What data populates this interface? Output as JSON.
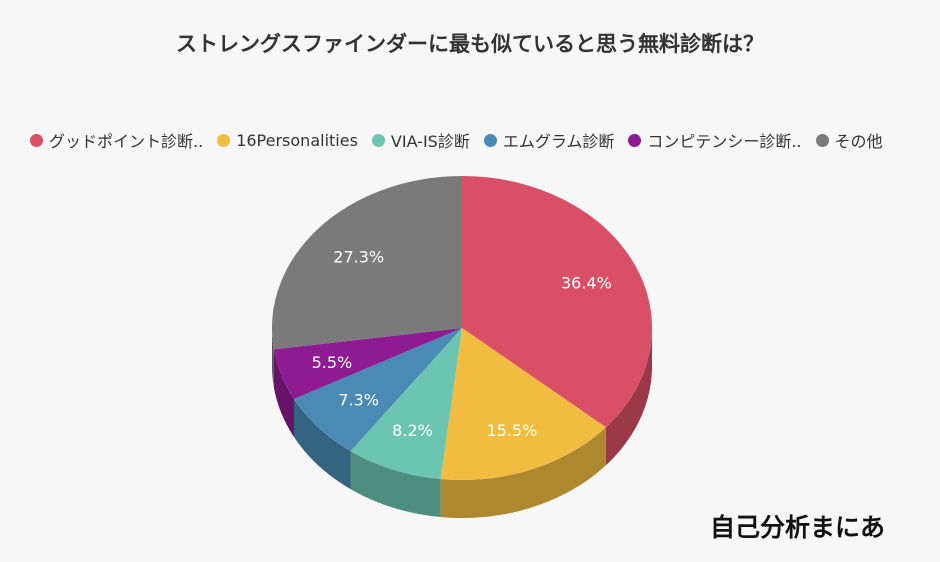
{
  "chart_data": {
    "type": "pie",
    "title": "ストレングスファインダーに最も似ていると思う無料診断は？",
    "legend_position": "top",
    "slices": [
      {
        "name": "グッドポイント診断..",
        "value": 36.4,
        "label": "36.4%",
        "color": "#d94f65"
      },
      {
        "name": "16Personalities",
        "value": 15.5,
        "label": "15.5%",
        "color": "#f0bd40"
      },
      {
        "name": "VIA-IS診断",
        "value": 8.2,
        "label": "8.2%",
        "color": "#6cc5b0"
      },
      {
        "name": "エムグラム診断",
        "value": 7.3,
        "label": "7.3%",
        "color": "#4a8ab5"
      },
      {
        "name": "コンピテンシー診断..",
        "value": 5.5,
        "label": "5.5%",
        "color": "#8e1b91"
      },
      {
        "name": "その他",
        "value": 27.3,
        "label": "27.3%",
        "color": "#7a7a7a"
      }
    ]
  },
  "watermark": {
    "text": "自己分析まにあ"
  }
}
